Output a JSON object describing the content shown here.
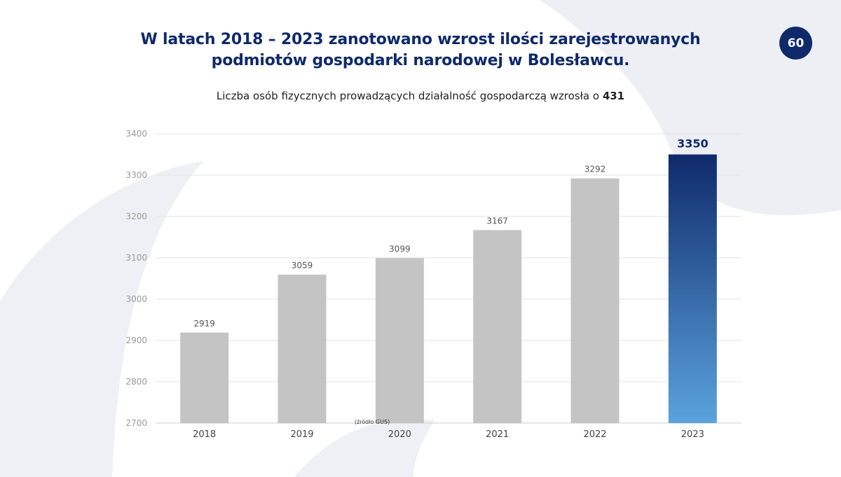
{
  "page": {
    "number": "60",
    "title_line1": "W latach 2018 – 2023 zanotowano wzrost ilości zarejestrowanych",
    "title_line2": "podmiotów gospodarki narodowej w Bolesławcu.",
    "subtitle_text": "Liczba osób fizycznych prowadzących działalność gospodarczą wzrosła o",
    "subtitle_value": "431"
  },
  "colors": {
    "brand_navy": "#0f2a6b",
    "bar_gray": "#c4c4c4",
    "highlight_top": "#0f2a6b",
    "highlight_bottom": "#5ba3de"
  },
  "chart_data": {
    "type": "bar",
    "categories": [
      "2018",
      "2019",
      "2020",
      "2021",
      "2022",
      "2023"
    ],
    "values": [
      2919,
      3059,
      3099,
      3167,
      3292,
      3350
    ],
    "highlight_index": 5,
    "ylim": [
      2700,
      3400
    ],
    "yticks": [
      2700,
      2800,
      2900,
      3000,
      3100,
      3200,
      3300,
      3400
    ],
    "grid": true,
    "title": "",
    "xlabel": "",
    "ylabel": "",
    "source_note": "(źródło GUS)"
  }
}
